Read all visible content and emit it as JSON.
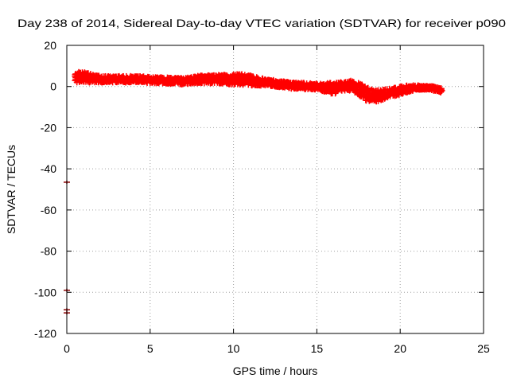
{
  "chart_data": {
    "type": "scatter",
    "title": "Day 238 of 2014, Sidereal Day-to-day VTEC variation (SDTVAR) for receiver p090",
    "xlabel": "GPS time / hours",
    "ylabel": "SDTVAR / TECUs",
    "xlim": [
      0,
      25
    ],
    "ylim": [
      -120,
      20
    ],
    "xticks": [
      0,
      5,
      10,
      15,
      20,
      25
    ],
    "yticks": [
      -120,
      -100,
      -80,
      -60,
      -40,
      -20,
      0,
      20
    ],
    "grid": true,
    "marker": "plus",
    "series": [
      {
        "name": "SDTVAR",
        "color": "#ff0000",
        "band": [
          [
            0.5,
            4.5,
            2.5
          ],
          [
            1.0,
            4.5,
            2.5
          ],
          [
            1.5,
            4.0,
            2.0
          ],
          [
            2.0,
            3.5,
            1.5
          ],
          [
            2.5,
            3.5,
            1.5
          ],
          [
            3.0,
            3.5,
            1.5
          ],
          [
            3.5,
            3.5,
            1.5
          ],
          [
            4.0,
            3.5,
            1.5
          ],
          [
            4.5,
            3.5,
            1.5
          ],
          [
            5.0,
            3.0,
            1.5
          ],
          [
            5.5,
            3.0,
            1.5
          ],
          [
            6.0,
            2.8,
            1.5
          ],
          [
            6.5,
            2.8,
            1.5
          ],
          [
            7.0,
            2.5,
            1.5
          ],
          [
            7.5,
            3.0,
            1.5
          ],
          [
            8.0,
            3.5,
            1.8
          ],
          [
            8.5,
            3.5,
            2.0
          ],
          [
            9.0,
            3.5,
            2.0
          ],
          [
            9.5,
            3.5,
            2.2
          ],
          [
            10.0,
            3.5,
            2.5
          ],
          [
            10.5,
            3.5,
            2.5
          ],
          [
            11.0,
            3.0,
            2.5
          ],
          [
            11.5,
            2.5,
            2.0
          ],
          [
            12.0,
            2.0,
            1.5
          ],
          [
            12.5,
            1.5,
            1.5
          ],
          [
            13.0,
            1.0,
            1.5
          ],
          [
            13.5,
            0.5,
            1.5
          ],
          [
            14.0,
            0.5,
            1.5
          ],
          [
            14.5,
            0.0,
            1.5
          ],
          [
            15.0,
            0.0,
            1.5
          ],
          [
            15.5,
            -0.5,
            2.0
          ],
          [
            16.0,
            -1.0,
            3.0
          ],
          [
            16.5,
            0.0,
            2.0
          ],
          [
            17.0,
            0.5,
            2.5
          ],
          [
            17.5,
            -1.0,
            3.0
          ],
          [
            18.0,
            -4.0,
            3.5
          ],
          [
            18.5,
            -5.0,
            3.0
          ],
          [
            19.0,
            -4.0,
            2.5
          ],
          [
            19.5,
            -3.0,
            2.0
          ],
          [
            20.0,
            -2.0,
            2.0
          ],
          [
            20.5,
            -1.0,
            1.5
          ],
          [
            21.0,
            -0.5,
            1.0
          ],
          [
            21.5,
            -0.5,
            1.0
          ],
          [
            22.0,
            -1.0,
            1.0
          ],
          [
            22.5,
            -2.0,
            1.0
          ]
        ],
        "outliers": [
          [
            0.0,
            -46.5
          ],
          [
            0.0,
            -99.0
          ],
          [
            0.0,
            -108.5
          ],
          [
            0.0,
            -110.0
          ]
        ]
      }
    ]
  }
}
